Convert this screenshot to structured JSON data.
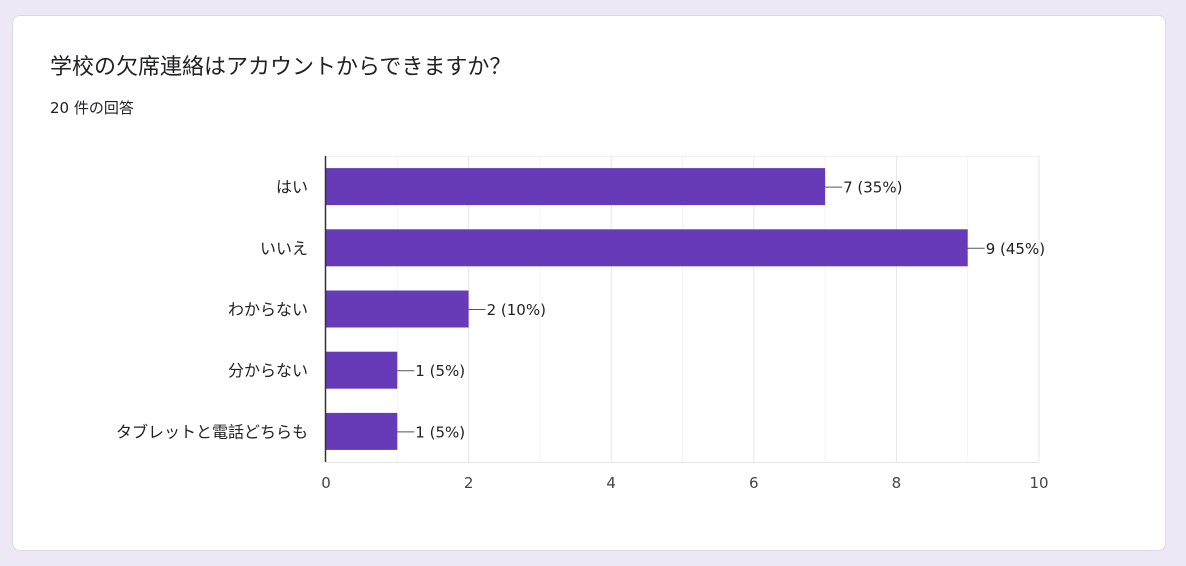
{
  "question": {
    "title": "学校の欠席連絡はアカウントからできますか？",
    "response_count": "20 件の回答"
  },
  "colors": {
    "bar": "#673ab7",
    "page_background": "#ede7f6",
    "card_background": "#ffffff"
  },
  "chart_data": {
    "type": "bar",
    "orientation": "horizontal",
    "categories": [
      "はい",
      "いいえ",
      "わからない",
      "分からない",
      "タブレットと電話どちらも"
    ],
    "values": [
      7,
      9,
      2,
      1,
      1
    ],
    "data_labels": [
      "7 (35%)",
      "9 (45%)",
      "2 (10%)",
      "1 (5%)",
      "1 (5%)"
    ],
    "xlim": [
      0,
      10
    ],
    "x_ticks": [
      0,
      2,
      4,
      6,
      8,
      10
    ],
    "grid": true,
    "legend": "none"
  }
}
